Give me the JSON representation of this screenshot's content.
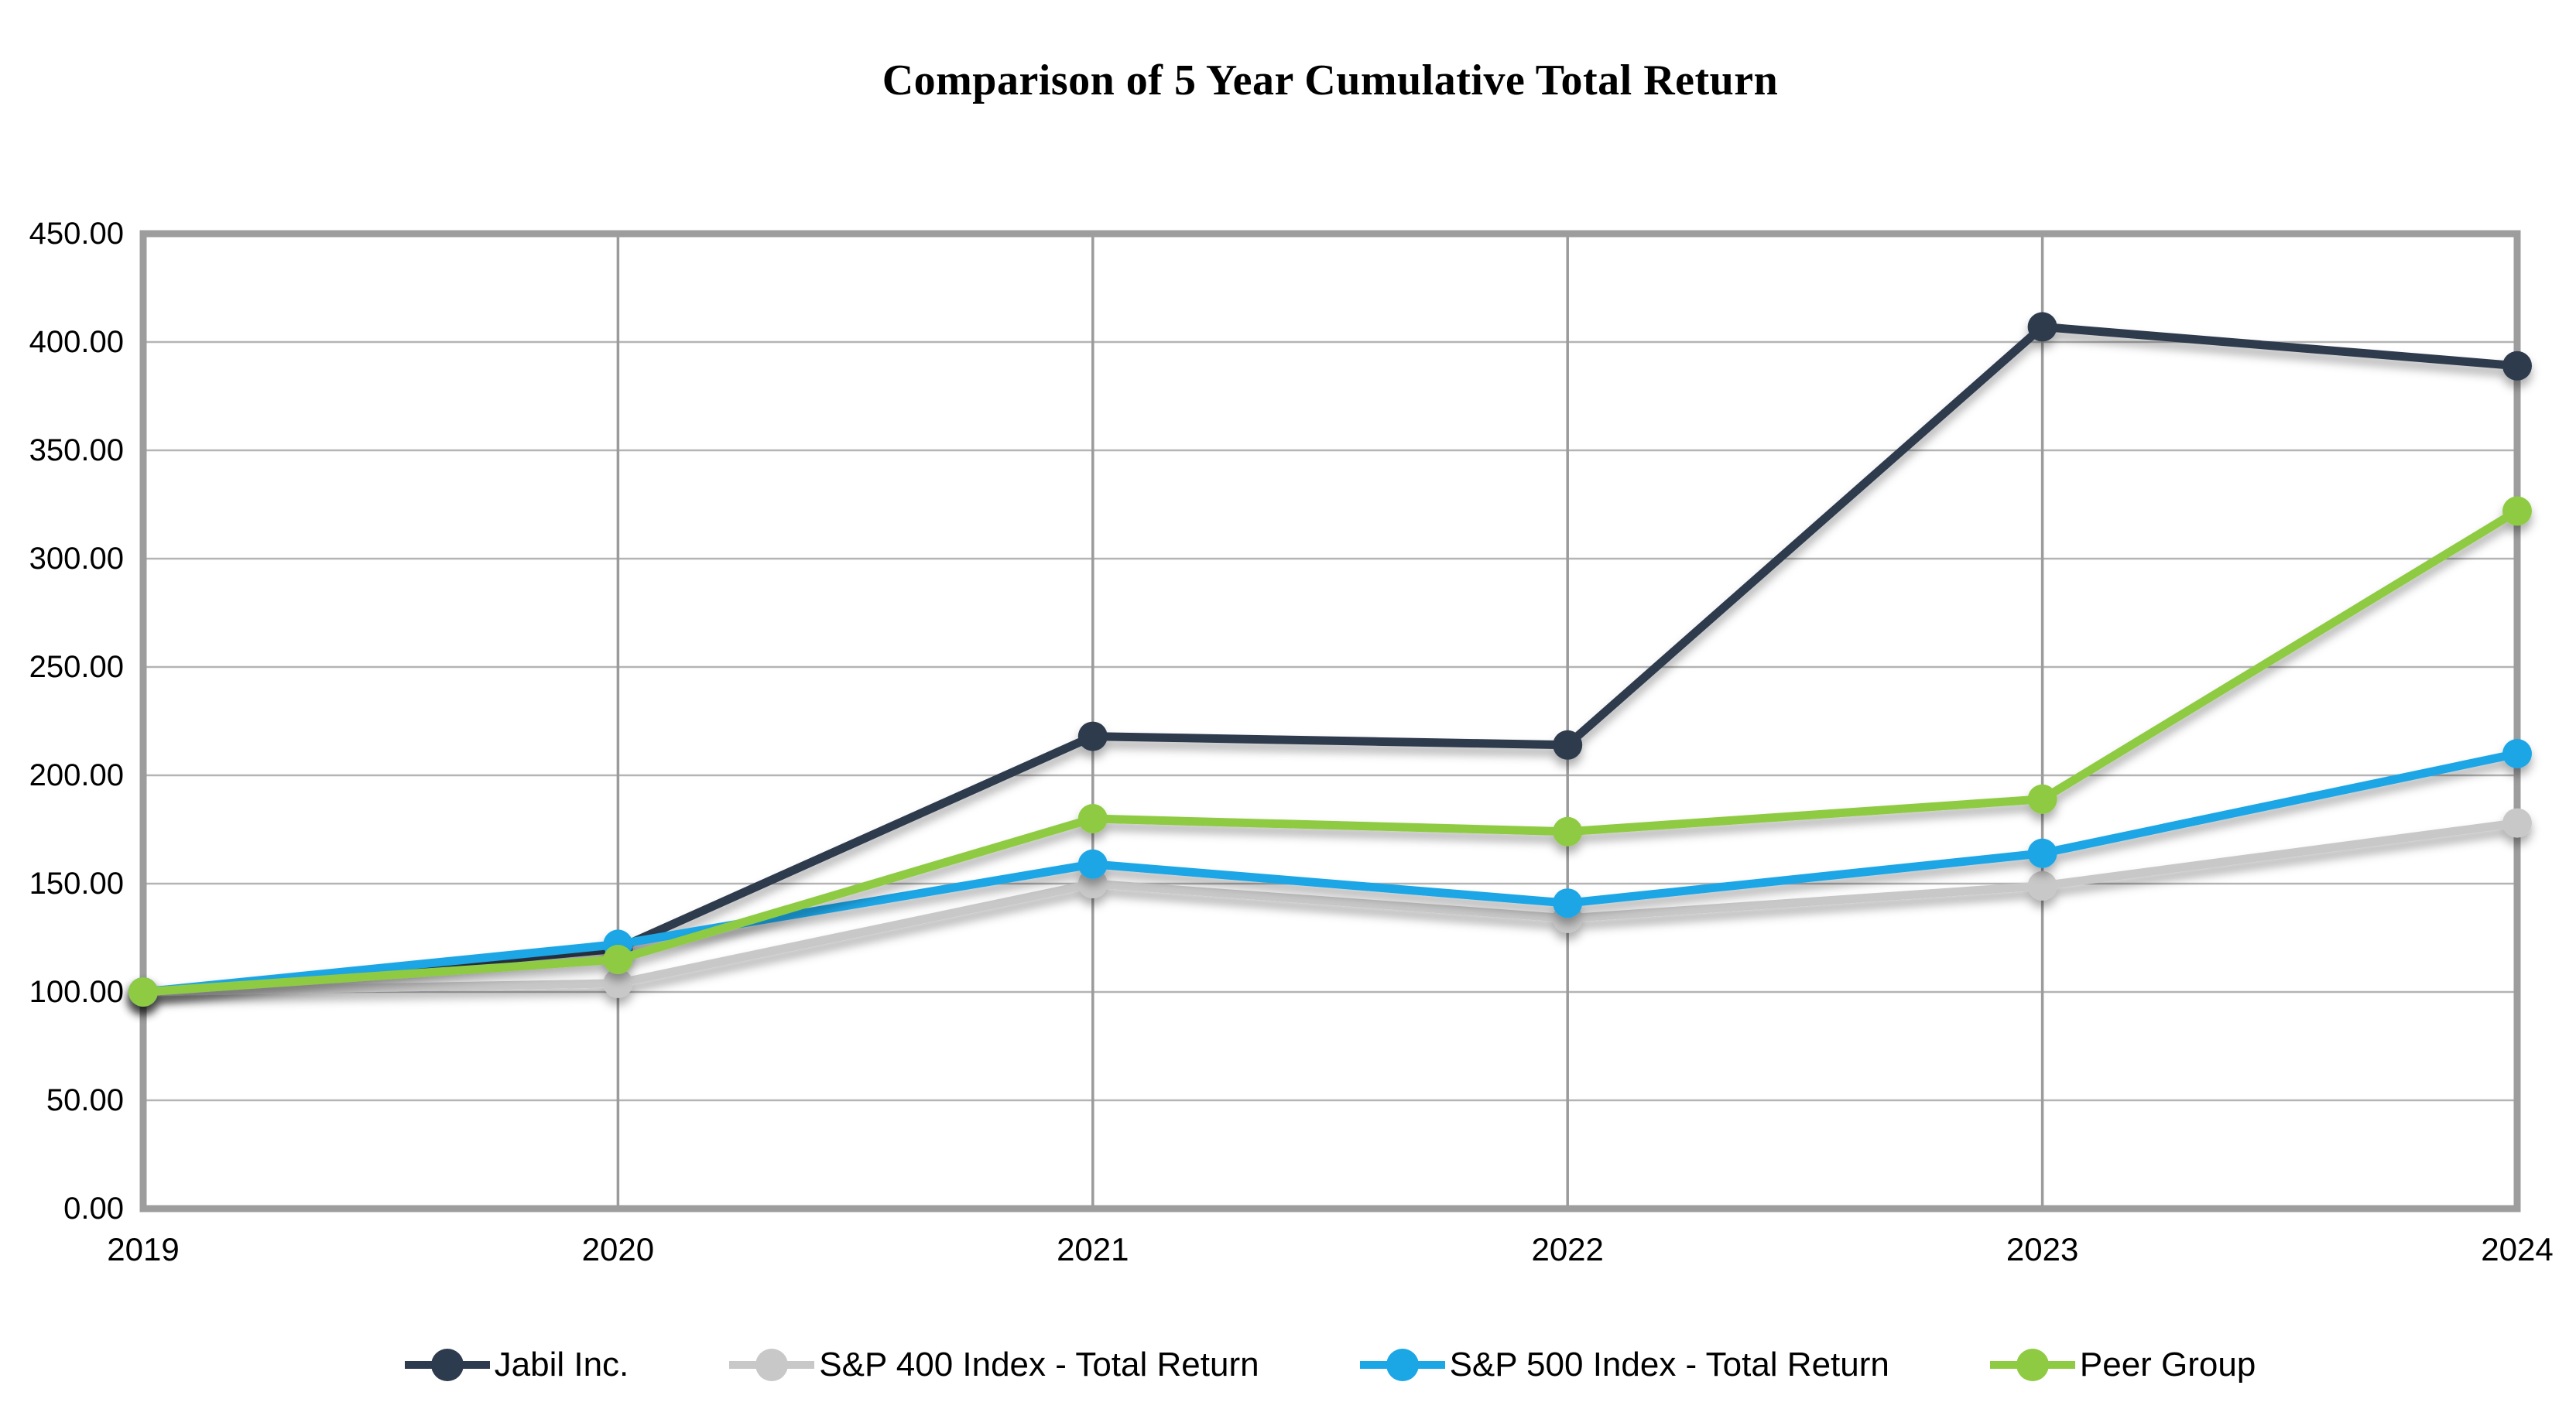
{
  "title": "Comparison of 5 Year Cumulative Total Return",
  "chart_data": {
    "type": "line",
    "x": [
      "2019",
      "2020",
      "2021",
      "2022",
      "2023",
      "2024"
    ],
    "series": [
      {
        "name": "Jabil Inc.",
        "color": "#2d3b4e",
        "values": [
          100,
          120,
          218,
          214,
          407,
          389
        ]
      },
      {
        "name": "S&P 400 Index - Total Return",
        "color": "#c8c8c8",
        "values": [
          100,
          104,
          150,
          134,
          149,
          178
        ]
      },
      {
        "name": "S&P 500 Index - Total Return",
        "color": "#1ba6e6",
        "values": [
          100,
          122,
          159,
          141,
          164,
          210
        ]
      },
      {
        "name": "Peer Group",
        "color": "#8ecb42",
        "values": [
          100,
          115,
          180,
          174,
          189,
          322
        ]
      }
    ],
    "ylim": [
      0,
      450
    ],
    "ytick_step": 50,
    "y_tick_labels": [
      "0.00",
      "50.00",
      "100.00",
      "150.00",
      "200.00",
      "250.00",
      "300.00",
      "350.00",
      "400.00",
      "450.00"
    ],
    "grid": true,
    "legend_position": "bottom",
    "colors": {
      "plot_border": "#9d9d9d",
      "v_gridline": "#9b9b9b",
      "h_gridline": "#b4b4b4",
      "text": "#000000",
      "background": "#ffffff"
    }
  }
}
